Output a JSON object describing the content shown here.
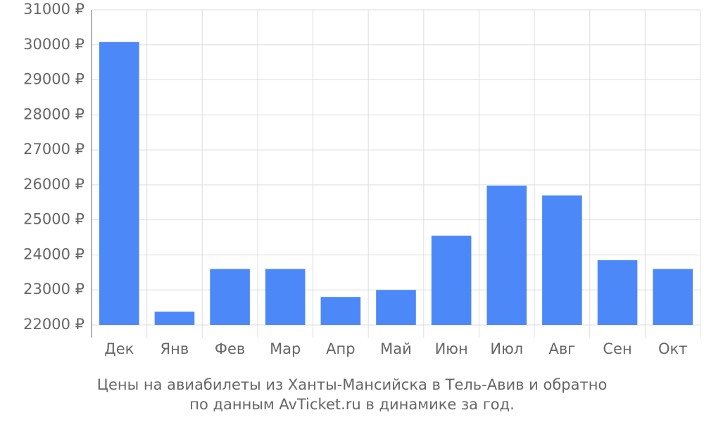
{
  "chart_data": {
    "type": "bar",
    "title": [
      "Цены на авиабилеты из Ханты-Мансийска в Тель-Авив и обратно",
      "по данным AvTicket.ru в динамике за год."
    ],
    "categories": [
      "Дек",
      "Янв",
      "Фев",
      "Мар",
      "Апр",
      "Май",
      "Июн",
      "Июл",
      "Авг",
      "Сен",
      "Окт"
    ],
    "values": [
      30080,
      22380,
      23600,
      23600,
      22800,
      23000,
      24550,
      25980,
      25700,
      23850,
      23600
    ],
    "color": "#4d88f8",
    "ylim": [
      22000,
      31000
    ],
    "yticks": [
      {
        "value": 22000,
        "label": "22000 ₽"
      },
      {
        "value": 23000,
        "label": "23000 ₽"
      },
      {
        "value": 24000,
        "label": "24000 ₽"
      },
      {
        "value": 25000,
        "label": "25000 ₽"
      },
      {
        "value": 26000,
        "label": "26000 ₽"
      },
      {
        "value": 27000,
        "label": "27000 ₽"
      },
      {
        "value": 28000,
        "label": "28000 ₽"
      },
      {
        "value": 29000,
        "label": "29000 ₽"
      },
      {
        "value": 30000,
        "label": "30000 ₽"
      },
      {
        "value": 31000,
        "label": "31000 ₽"
      }
    ],
    "grid": true
  }
}
